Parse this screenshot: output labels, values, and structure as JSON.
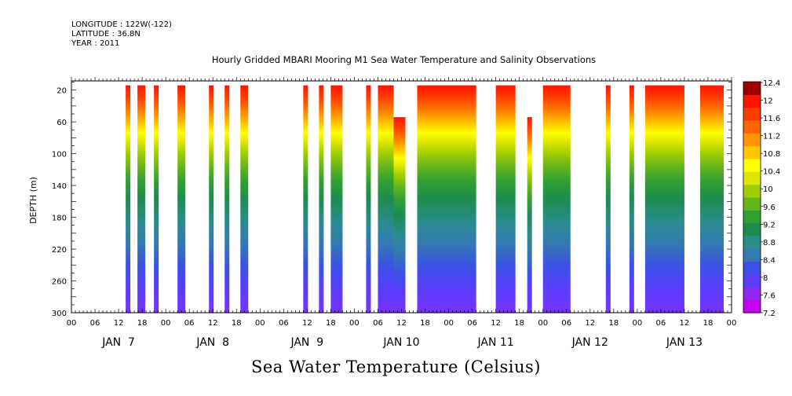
{
  "header": {
    "longitude": "LONGITUDE : 122W(-122)",
    "latitude": "LATITUDE : 36.8N",
    "year": "YEAR : 2011",
    "title": "Hourly Gridded MBARI Mooring M1 Sea Water Temperature and Salinity Observations",
    "variable": "Sea Water Temperature (Celsius)"
  },
  "chart_data": {
    "type": "heatmap",
    "title": "Hourly Gridded MBARI Mooring M1 Sea Water Temperature and Salinity Observations",
    "xlabel": "",
    "ylabel": "DEPTH (m)",
    "colorbar_label": "Sea Water Temperature (Celsius)",
    "x_hour_ticks": [
      "00",
      "06",
      "12",
      "18",
      "00",
      "06",
      "12",
      "18",
      "00",
      "06",
      "12",
      "18",
      "00",
      "06",
      "12",
      "18",
      "00",
      "06",
      "12",
      "18",
      "00",
      "06",
      "12",
      "18",
      "00",
      "06",
      "12",
      "18",
      "00"
    ],
    "x_day_labels": [
      "JAN  7",
      "JAN  8",
      "JAN  9",
      "JAN 10",
      "JAN 11",
      "JAN 12",
      "JAN 13"
    ],
    "xlim_hours": [
      0,
      168
    ],
    "y_ticks": [
      20,
      60,
      100,
      140,
      180,
      220,
      260,
      300
    ],
    "ylim": [
      300,
      0
    ],
    "colorbar_levels": [
      7.2,
      7.6,
      8,
      8.4,
      8.8,
      9.2,
      9.6,
      10,
      10.4,
      10.8,
      11.2,
      11.6,
      12,
      12.4
    ],
    "colorbar_labels": [
      "7.2",
      "7.6",
      "8",
      "8.4",
      "8.8",
      "9.2",
      "9.6",
      "10",
      "10.4",
      "10.8",
      "11.2",
      "11.6",
      "12",
      "12.4"
    ],
    "colors": [
      "#c800f0",
      "#9028f0",
      "#5a3cff",
      "#3c50e6",
      "#3478b4",
      "#2a8c8c",
      "#1e8c50",
      "#32a032",
      "#64b41e",
      "#a0cd00",
      "#dce600",
      "#ffff00",
      "#ffc800",
      "#ff9600",
      "#ff6400",
      "#ff3c00",
      "#ff1400",
      "#a00000"
    ],
    "segments": [
      {
        "start": 13.8,
        "end": 15.0,
        "top": 20,
        "bottom": 300
      },
      {
        "start": 16.8,
        "end": 18.8,
        "top": 20,
        "bottom": 300
      },
      {
        "start": 21.0,
        "end": 22.2,
        "top": 20,
        "bottom": 300
      },
      {
        "start": 27.0,
        "end": 29.0,
        "top": 20,
        "bottom": 300
      },
      {
        "start": 35.0,
        "end": 36.2,
        "top": 20,
        "bottom": 300
      },
      {
        "start": 39.0,
        "end": 40.2,
        "top": 20,
        "bottom": 300
      },
      {
        "start": 43.0,
        "end": 45.0,
        "top": 20,
        "bottom": 300
      },
      {
        "start": 59.0,
        "end": 60.2,
        "top": 20,
        "bottom": 300
      },
      {
        "start": 63.0,
        "end": 64.2,
        "top": 20,
        "bottom": 300
      },
      {
        "start": 66.0,
        "end": 69.0,
        "top": 20,
        "bottom": 300
      },
      {
        "start": 75.0,
        "end": 76.2,
        "top": 20,
        "bottom": 300
      },
      {
        "start": 78.0,
        "end": 82.0,
        "top": 20,
        "bottom": 300
      },
      {
        "start": 82.0,
        "end": 85.0,
        "top": 60,
        "bottom": 300
      },
      {
        "start": 88.0,
        "end": 103.0,
        "top": 20,
        "bottom": 300
      },
      {
        "start": 108.0,
        "end": 113.0,
        "top": 20,
        "bottom": 300
      },
      {
        "start": 116.0,
        "end": 117.2,
        "top": 60,
        "bottom": 300
      },
      {
        "start": 120.0,
        "end": 127.0,
        "top": 20,
        "bottom": 300
      },
      {
        "start": 136.0,
        "end": 137.2,
        "top": 20,
        "bottom": 300
      },
      {
        "start": 142.0,
        "end": 143.2,
        "top": 20,
        "bottom": 300
      },
      {
        "start": 146.0,
        "end": 156.0,
        "top": 20,
        "bottom": 300
      },
      {
        "start": 160.0,
        "end": 166.0,
        "top": 20,
        "bottom": 300
      }
    ]
  }
}
